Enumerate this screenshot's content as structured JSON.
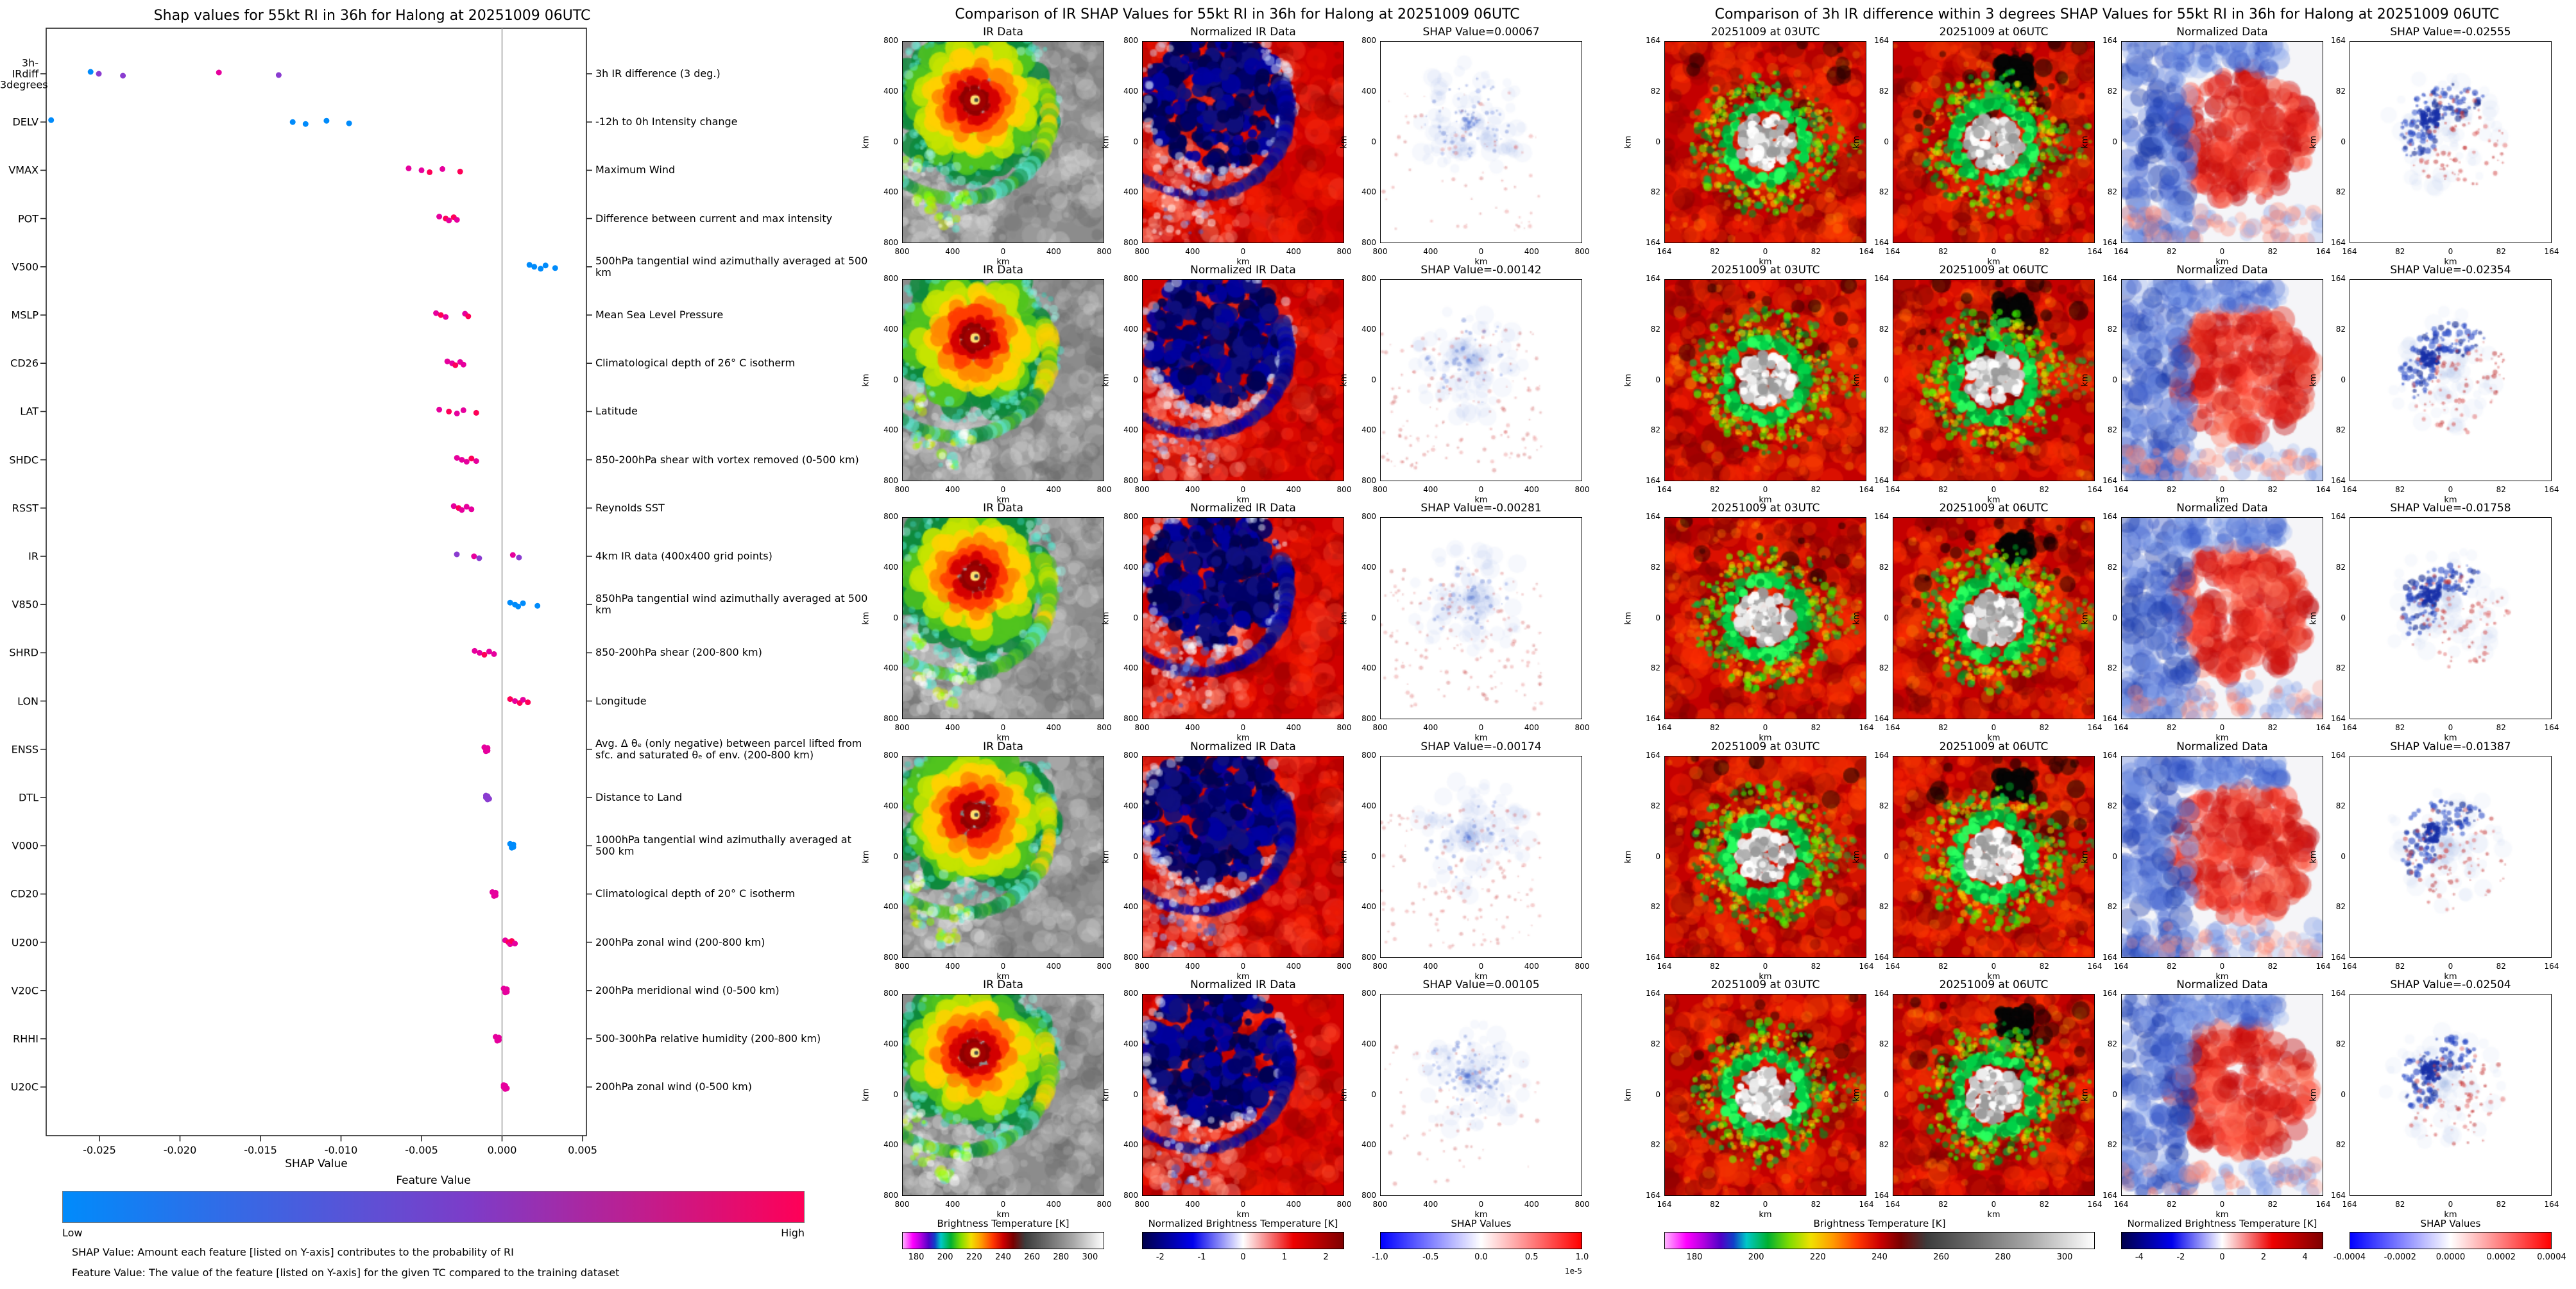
{
  "chart_data": {
    "type": "scatter",
    "title": "Shap values for 55kt RI in 36h for Halong at 20251009 06UTC",
    "xlabel": "SHAP Value",
    "xlim": [
      -0.0285,
      0.0052
    ],
    "x_ticks": [
      -0.025,
      -0.02,
      -0.015,
      -0.01,
      -0.005,
      0,
      0.005
    ],
    "x_tick_labels": [
      "-0.025",
      "-0.020",
      "-0.015",
      "-0.010",
      "-0.005",
      "0.000",
      "0.005"
    ],
    "zero_line": 0,
    "grid": false,
    "legend_position": "none",
    "colorbar": {
      "label": "Feature Value",
      "low_label": "Low",
      "high_label": "High",
      "colors": [
        "#008bfb",
        "#7d3cc8",
        "#ff0057"
      ]
    },
    "footnotes": [
      "SHAP Value: Amount each feature [listed on Y-axis] contributes to the probability of RI",
      "Feature Value: The value of the feature [listed on Y-axis] for the given TC compared to the training dataset"
    ],
    "point_colors": {
      "blue": "#008bfb",
      "purple": "#8a3cd0",
      "magenta": "#e6009d",
      "pink": "#ff0057"
    },
    "features": [
      {
        "label": "3h-IRdiff\n3degrees",
        "desc": "3h IR difference (3 deg.)",
        "values": [
          -0.02555,
          -0.02504,
          -0.02354,
          -0.01758,
          -0.01387
        ],
        "colors": [
          "blue",
          "purple",
          "purple",
          "magenta",
          "purple"
        ]
      },
      {
        "label": "DELV",
        "desc": "-12h to 0h Intensity change",
        "values": [
          -0.028,
          -0.013,
          -0.0122,
          -0.0109,
          -0.0095
        ],
        "colors": [
          "blue",
          "blue",
          "blue",
          "blue",
          "blue"
        ]
      },
      {
        "label": "VMAX",
        "desc": "Maximum Wind",
        "values": [
          -0.0058,
          -0.005,
          -0.0045,
          -0.0037,
          -0.0026
        ],
        "colors": [
          "magenta",
          "magenta",
          "pink",
          "magenta",
          "pink"
        ]
      },
      {
        "label": "POT",
        "desc": "Difference between current and max intensity",
        "values": [
          -0.0039,
          -0.0035,
          -0.0033,
          -0.003,
          -0.0028
        ],
        "colors": [
          "magenta",
          "pink",
          "magenta",
          "pink",
          "magenta"
        ]
      },
      {
        "label": "V500",
        "desc": "500hPa tangential wind azimuthally averaged at 500 km",
        "values": [
          0.0017,
          0.002,
          0.0024,
          0.0027,
          0.0033
        ],
        "colors": [
          "blue",
          "blue",
          "blue",
          "blue",
          "blue"
        ]
      },
      {
        "label": "MSLP",
        "desc": "Mean Sea Level Pressure",
        "values": [
          -0.0041,
          -0.0038,
          -0.0035,
          -0.0023,
          -0.0021
        ],
        "colors": [
          "magenta",
          "pink",
          "magenta",
          "magenta",
          "pink"
        ]
      },
      {
        "label": "CD26",
        "desc": "Climatological depth of 26° C isotherm",
        "values": [
          -0.0034,
          -0.0031,
          -0.0029,
          -0.0026,
          -0.0024
        ],
        "colors": [
          "magenta",
          "magenta",
          "pink",
          "magenta",
          "magenta"
        ]
      },
      {
        "label": "LAT",
        "desc": "Latitude",
        "values": [
          -0.0039,
          -0.0033,
          -0.0028,
          -0.0024,
          -0.0016
        ],
        "colors": [
          "magenta",
          "pink",
          "magenta",
          "magenta",
          "pink"
        ]
      },
      {
        "label": "SHDC",
        "desc": "850-200hPa shear with vortex removed (0-500 km)",
        "values": [
          -0.0028,
          -0.0025,
          -0.0022,
          -0.0019,
          -0.0016
        ],
        "colors": [
          "magenta",
          "magenta",
          "magenta",
          "pink",
          "magenta"
        ]
      },
      {
        "label": "RSST",
        "desc": "Reynolds SST",
        "values": [
          -0.003,
          -0.0027,
          -0.0025,
          -0.0022,
          -0.0019
        ],
        "colors": [
          "magenta",
          "pink",
          "magenta",
          "magenta",
          "magenta"
        ]
      },
      {
        "label": "IR",
        "desc": "4km IR data (400x400 grid points)",
        "values": [
          -0.00281,
          -0.00174,
          -0.00142,
          0.00067,
          0.00105
        ],
        "colors": [
          "purple",
          "magenta",
          "purple",
          "magenta",
          "purple"
        ]
      },
      {
        "label": "V850",
        "desc": "850hPa tangential wind azimuthally averaged at 500 km",
        "values": [
          0.0005,
          0.0008,
          0.001,
          0.0013,
          0.0022
        ],
        "colors": [
          "blue",
          "blue",
          "blue",
          "blue",
          "blue"
        ]
      },
      {
        "label": "SHRD",
        "desc": "850-200hPa shear (200-800 km)",
        "values": [
          -0.0017,
          -0.0014,
          -0.0011,
          -0.0008,
          -0.0005
        ],
        "colors": [
          "magenta",
          "magenta",
          "pink",
          "magenta",
          "magenta"
        ]
      },
      {
        "label": "LON",
        "desc": "Longitude",
        "values": [
          0.0005,
          0.0008,
          0.0011,
          0.0013,
          0.0016
        ],
        "colors": [
          "pink",
          "magenta",
          "pink",
          "magenta",
          "pink"
        ]
      },
      {
        "label": "ENSS",
        "desc": "Avg. Δ θₑ (only negative) between parcel lifted from sfc. and saturated θₑ of env. (200-800 km)",
        "values": [
          -0.0011,
          -0.001,
          -0.001,
          -0.0009,
          -0.0009
        ],
        "colors": [
          "magenta",
          "magenta",
          "magenta",
          "magenta",
          "magenta"
        ]
      },
      {
        "label": "DTL",
        "desc": "Distance to Land",
        "values": [
          -0.001,
          -0.001,
          -0.0009,
          -0.0009,
          -0.0008
        ],
        "colors": [
          "purple",
          "purple",
          "purple",
          "purple",
          "purple"
        ]
      },
      {
        "label": "V000",
        "desc": "1000hPa tangential wind azimuthally averaged at 500 km",
        "values": [
          0.0005,
          0.0006,
          0.0006,
          0.0007,
          0.0007
        ],
        "colors": [
          "blue",
          "blue",
          "blue",
          "blue",
          "blue"
        ]
      },
      {
        "label": "CD20",
        "desc": "Climatological depth of 20° C isotherm",
        "values": [
          -0.0006,
          -0.0005,
          -0.0005,
          -0.0004,
          -0.0004
        ],
        "colors": [
          "magenta",
          "magenta",
          "magenta",
          "magenta",
          "magenta"
        ]
      },
      {
        "label": "U200",
        "desc": "200hPa zonal wind (200-800 km)",
        "values": [
          0.0002,
          0.0004,
          0.0005,
          0.0006,
          0.0008
        ],
        "colors": [
          "magenta",
          "pink",
          "magenta",
          "pink",
          "magenta"
        ]
      },
      {
        "label": "V20C",
        "desc": "200hPa meridional wind (0-500 km)",
        "values": [
          0.0001,
          0.0002,
          0.0002,
          0.0003,
          0.0003
        ],
        "colors": [
          "magenta",
          "magenta",
          "magenta",
          "magenta",
          "magenta"
        ]
      },
      {
        "label": "RHHI",
        "desc": "500-300hPa relative humidity (200-800 km)",
        "values": [
          -0.0004,
          -0.0003,
          -0.0003,
          -0.0002,
          -0.0002
        ],
        "colors": [
          "magenta",
          "magenta",
          "magenta",
          "magenta",
          "magenta"
        ]
      },
      {
        "label": "U20C",
        "desc": "200hPa zonal wind (0-500 km)",
        "values": [
          0.0001,
          0.0001,
          0.0002,
          0.0002,
          0.0003
        ],
        "colors": [
          "magenta",
          "magenta",
          "magenta",
          "magenta",
          "magenta"
        ]
      }
    ]
  },
  "ir_comparison": {
    "title": "Comparison of IR SHAP Values for 55kt RI in 36h for Halong at 20251009 06UTC",
    "axis": {
      "tick_labels": [
        "800",
        "400",
        "0",
        "400",
        "800"
      ],
      "xlabel": "km",
      "ylabel": "km"
    },
    "rows": [
      {
        "col_titles": [
          "IR Data",
          "Normalized IR Data",
          "SHAP Value=0.00067"
        ],
        "shap_value": 0.00067
      },
      {
        "col_titles": [
          "IR Data",
          "Normalized IR Data",
          "SHAP Value=-0.00142"
        ],
        "shap_value": -0.00142
      },
      {
        "col_titles": [
          "IR Data",
          "Normalized IR Data",
          "SHAP Value=-0.00281"
        ],
        "shap_value": -0.00281
      },
      {
        "col_titles": [
          "IR Data",
          "Normalized IR Data",
          "SHAP Value=-0.00174"
        ],
        "shap_value": -0.00174
      },
      {
        "col_titles": [
          "IR Data",
          "Normalized IR Data",
          "SHAP Value=0.00105"
        ],
        "shap_value": 0.00105
      }
    ],
    "colorbars": [
      {
        "label": "Brightness Temperature [K]",
        "ticks": [
          "180",
          "200",
          "220",
          "240",
          "260",
          "280",
          "300"
        ],
        "type": "ir"
      },
      {
        "label": "Normalized Brightness Temperature [K]",
        "ticks": [
          "-2",
          "-1",
          "0",
          "1",
          "2"
        ],
        "type": "seismic"
      },
      {
        "label": "SHAP Values",
        "ticks": [
          "-1.0",
          "-0.5",
          "0.0",
          "0.5",
          "1.0"
        ],
        "exponent": "1e-5",
        "type": "bwr"
      }
    ]
  },
  "diff_comparison": {
    "title": "Comparison of 3h IR difference within 3 degrees SHAP Values for 55kt RI in 36h for Halong at 20251009 06UTC",
    "axis": {
      "tick_labels": [
        "164",
        "82",
        "0",
        "82",
        "164"
      ],
      "xlabel": "km",
      "ylabel": "km"
    },
    "rows": [
      {
        "col_titles": [
          "20251009 at 03UTC",
          "20251009 at 06UTC",
          "Normalized Data",
          "SHAP Value=-0.02555"
        ],
        "shap_value": -0.02555
      },
      {
        "col_titles": [
          "20251009 at 03UTC",
          "20251009 at 06UTC",
          "Normalized Data",
          "SHAP Value=-0.02354"
        ],
        "shap_value": -0.02354
      },
      {
        "col_titles": [
          "20251009 at 03UTC",
          "20251009 at 06UTC",
          "Normalized Data",
          "SHAP Value=-0.01758"
        ],
        "shap_value": -0.01758
      },
      {
        "col_titles": [
          "20251009 at 03UTC",
          "20251009 at 06UTC",
          "Normalized Data",
          "SHAP Value=-0.01387"
        ],
        "shap_value": -0.01387
      },
      {
        "col_titles": [
          "20251009 at 03UTC",
          "20251009 at 06UTC",
          "Normalized Data",
          "SHAP Value=-0.02504"
        ],
        "shap_value": -0.02504
      }
    ],
    "colorbars": [
      {
        "label": "Brightness Temperature [K]",
        "ticks": [
          "180",
          "200",
          "220",
          "240",
          "260",
          "280",
          "300"
        ],
        "type": "ir"
      },
      {
        "label": "Normalized Brightness Temperature [K]",
        "ticks": [
          "-4",
          "-2",
          "0",
          "2",
          "4"
        ],
        "type": "seismic"
      },
      {
        "label": "SHAP Values",
        "ticks": [
          "-0.0004",
          "-0.0002",
          "0.0000",
          "0.0002",
          "0.0004"
        ],
        "type": "bwr"
      }
    ]
  }
}
